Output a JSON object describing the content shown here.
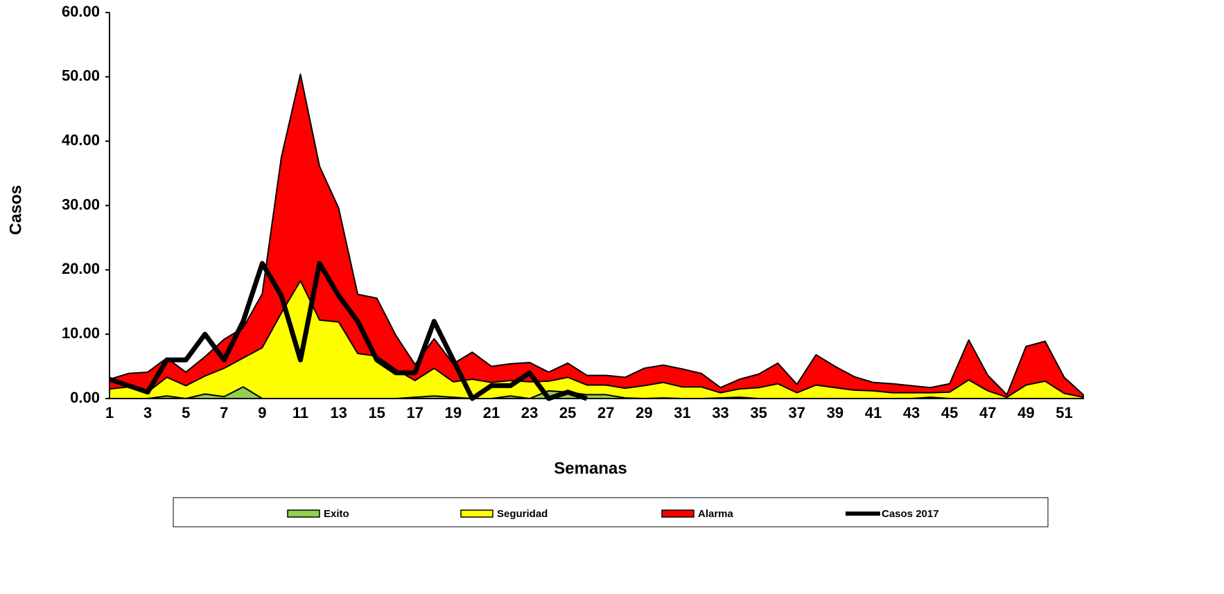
{
  "chart_data": {
    "type": "area",
    "x_label": "Semanas",
    "y_label": "Casos",
    "categories": [
      1,
      null,
      3,
      null,
      5,
      null,
      7,
      null,
      9,
      null,
      11,
      null,
      13,
      null,
      15,
      null,
      17,
      null,
      19,
      null,
      21,
      null,
      23,
      null,
      25,
      null,
      27,
      null,
      29,
      null,
      31,
      null,
      33,
      null,
      35,
      null,
      37,
      null,
      39,
      null,
      41,
      null,
      43,
      null,
      45,
      null,
      47,
      null,
      49,
      null,
      51,
      null
    ],
    "ylim": [
      0,
      60
    ],
    "yticks": [
      {
        "value": 0,
        "label": "0.00"
      },
      {
        "value": 10,
        "label": "10.00"
      },
      {
        "value": 20,
        "label": "20.00"
      },
      {
        "value": 30,
        "label": "30.00"
      },
      {
        "value": 40,
        "label": "40.00"
      },
      {
        "value": 50,
        "label": "50.00"
      },
      {
        "value": 60,
        "label": "60.00"
      }
    ],
    "legend": "bottom",
    "series": [
      {
        "name": "Exito",
        "color": "#92d050",
        "kind": "area",
        "values": [
          0,
          0,
          0,
          0.4,
          0,
          0.7,
          0.3,
          1.8,
          0,
          0,
          0,
          0,
          0,
          0,
          0,
          0,
          0.2,
          0.4,
          0.2,
          0,
          0,
          0.4,
          0,
          1.2,
          1.0,
          0.6,
          0.6,
          0.1,
          0,
          0.1,
          0,
          0,
          0.1,
          0.2,
          0,
          0,
          0,
          0,
          0,
          0,
          0,
          0,
          0,
          0.2,
          0,
          0,
          0,
          0,
          0,
          0,
          0,
          0
        ]
      },
      {
        "name": "Seguridad",
        "color": "#ffff00",
        "kind": "area",
        "values": [
          1.5,
          1.8,
          1.0,
          3.3,
          2.0,
          3.5,
          4.7,
          6.3,
          7.9,
          13.3,
          18.3,
          12.2,
          11.9,
          7.0,
          6.6,
          4.5,
          2.8,
          4.7,
          2.6,
          3.0,
          2.5,
          2.8,
          2.6,
          2.7,
          3.3,
          2.1,
          2.1,
          1.6,
          2.0,
          2.5,
          1.8,
          1.8,
          0.9,
          1.5,
          1.7,
          2.3,
          0.9,
          2.1,
          1.7,
          1.3,
          1.2,
          0.9,
          0.9,
          0.9,
          1.0,
          2.9,
          1.2,
          0.2,
          2.1,
          2.7,
          0.8,
          0.2
        ]
      },
      {
        "name": "Alarma",
        "color": "#ff0000",
        "kind": "area",
        "values": [
          3.0,
          3.9,
          4.1,
          6.3,
          4.1,
          6.5,
          9.2,
          11,
          16.3,
          37.5,
          50.4,
          36.1,
          29.6,
          16.2,
          15.6,
          9.8,
          5.3,
          9.3,
          5.4,
          7.2,
          5.0,
          5.4,
          5.6,
          4.1,
          5.5,
          3.6,
          3.6,
          3.3,
          4.7,
          5.2,
          4.6,
          3.9,
          1.7,
          3.0,
          3.8,
          5.5,
          2.2,
          6.8,
          5.0,
          3.4,
          2.5,
          2.3,
          2.0,
          1.7,
          2.3,
          9.1,
          3.6,
          0.6,
          8.1,
          8.9,
          3.3,
          0.6
        ]
      },
      {
        "name": "Casos 2017",
        "color": "#000000",
        "kind": "line",
        "values": [
          3,
          2,
          1,
          6,
          6,
          10,
          6,
          12,
          21,
          16,
          6,
          21,
          16,
          12,
          6,
          4,
          4,
          12,
          6,
          0,
          2,
          2,
          4,
          0,
          1,
          0,
          null,
          null,
          null,
          null,
          null,
          null,
          null,
          null,
          null,
          null,
          null,
          null,
          null,
          null,
          null,
          null,
          null,
          null,
          null,
          null,
          null,
          null,
          null,
          null,
          null,
          null
        ]
      }
    ]
  }
}
